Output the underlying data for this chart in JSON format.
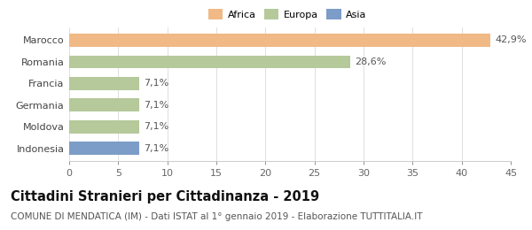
{
  "categories": [
    "Indonesia",
    "Moldova",
    "Germania",
    "Francia",
    "Romania",
    "Marocco"
  ],
  "values": [
    7.1,
    7.1,
    7.1,
    7.1,
    28.6,
    42.9
  ],
  "labels": [
    "7,1%",
    "7,1%",
    "7,1%",
    "7,1%",
    "28,6%",
    "42,9%"
  ],
  "colors": [
    "#7b9dc7",
    "#b5c99a",
    "#b5c99a",
    "#b5c99a",
    "#b5c99a",
    "#f0b986"
  ],
  "legend": [
    {
      "label": "Africa",
      "color": "#f0b986"
    },
    {
      "label": "Europa",
      "color": "#b5c99a"
    },
    {
      "label": "Asia",
      "color": "#7b9dc7"
    }
  ],
  "xlim": [
    0,
    45
  ],
  "xticks": [
    0,
    5,
    10,
    15,
    20,
    25,
    30,
    35,
    40,
    45
  ],
  "title": "Cittadini Stranieri per Cittadinanza - 2019",
  "subtitle": "COMUNE DI MENDATICA (IM) - Dati ISTAT al 1° gennaio 2019 - Elaborazione TUTTITALIA.IT",
  "bar_height": 0.6,
  "background_color": "#ffffff",
  "label_fontsize": 8,
  "tick_fontsize": 8,
  "title_fontsize": 10.5,
  "subtitle_fontsize": 7.5
}
